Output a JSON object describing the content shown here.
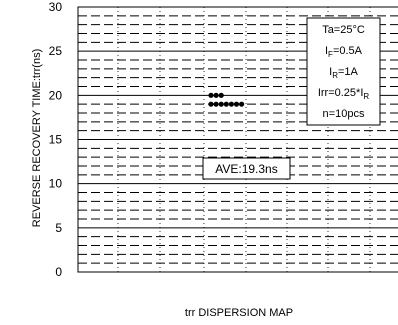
{
  "chart_data": {
    "type": "scatter",
    "title": "",
    "xlabel": "trr DISPERSION MAP",
    "ylabel": "REVERSE RECOVERY TIME:trr(ns)",
    "ylim": [
      0,
      30
    ],
    "yticks": [
      0,
      5,
      10,
      15,
      20,
      25,
      30
    ],
    "grid": true,
    "series": [
      {
        "values": [
          20,
          20,
          20,
          19,
          19,
          19,
          19,
          19,
          19,
          19
        ]
      }
    ],
    "annotations": {
      "average": "AVE:19.3ns",
      "conditions": {
        "ta": "Ta=25°C",
        "if_main": "I",
        "if_sub": "F",
        "if_val": "=0.5A",
        "ir_main": "I",
        "ir_sub": "R",
        "ir_val": "=1A",
        "irr_main": "Irr=0.25*I",
        "irr_sub": "R",
        "n": "n=10pcs"
      }
    },
    "colors": {
      "points": "#000000",
      "grid": "#000000"
    }
  }
}
